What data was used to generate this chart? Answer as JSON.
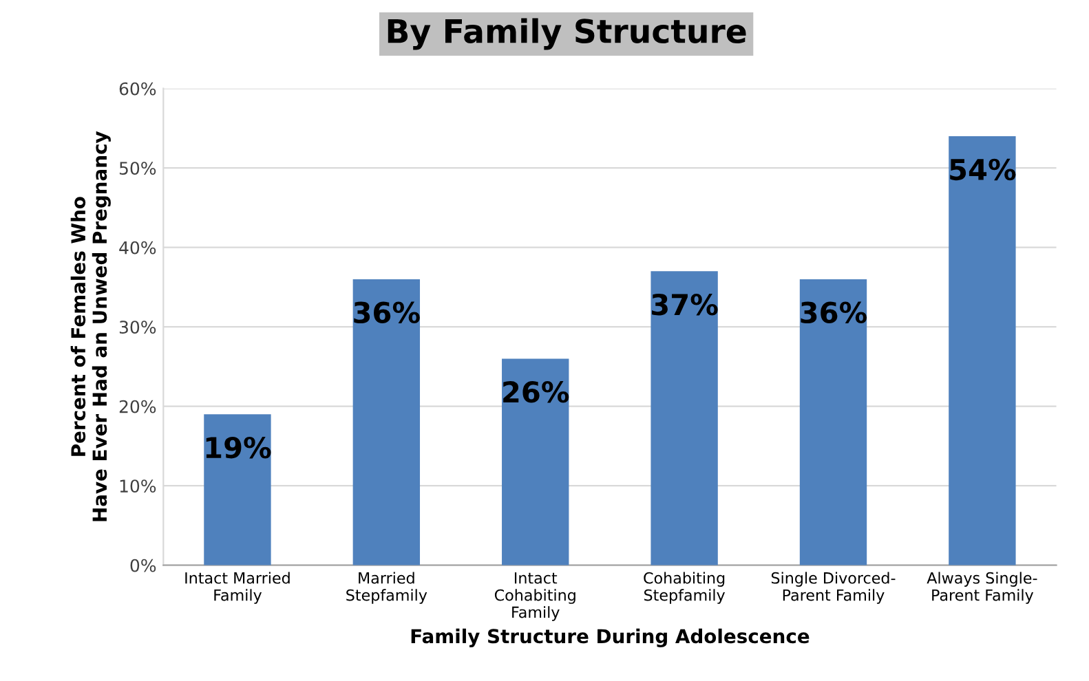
{
  "chart_data": {
    "type": "bar",
    "title": "By Family Structure",
    "xlabel": "Family Structure During Adolescence",
    "ylabel": "Percent of Females Who\nHave Ever Had an Unwed Pregnancy",
    "categories": [
      "Intact Married\nFamily",
      "Married\nStepfamily",
      "Intact\nCohabiting\nFamily",
      "Cohabiting\nStepfamily",
      "Single Divorced-\nParent Family",
      "Always Single-\nParent Family"
    ],
    "values": [
      19,
      36,
      26,
      37,
      36,
      54
    ],
    "value_labels": [
      "19%",
      "36%",
      "26%",
      "37%",
      "36%",
      "54%"
    ],
    "color": "#4f81bd",
    "ylim": [
      0,
      60
    ],
    "yticks": [
      {
        "value": 0,
        "label": "0%"
      },
      {
        "value": 10,
        "label": "10%"
      },
      {
        "value": 20,
        "label": "20%"
      },
      {
        "value": 30,
        "label": "30%"
      },
      {
        "value": 40,
        "label": "40%"
      },
      {
        "value": 50,
        "label": "50%"
      },
      {
        "value": 60,
        "label": "60%"
      }
    ],
    "grid": "y"
  }
}
